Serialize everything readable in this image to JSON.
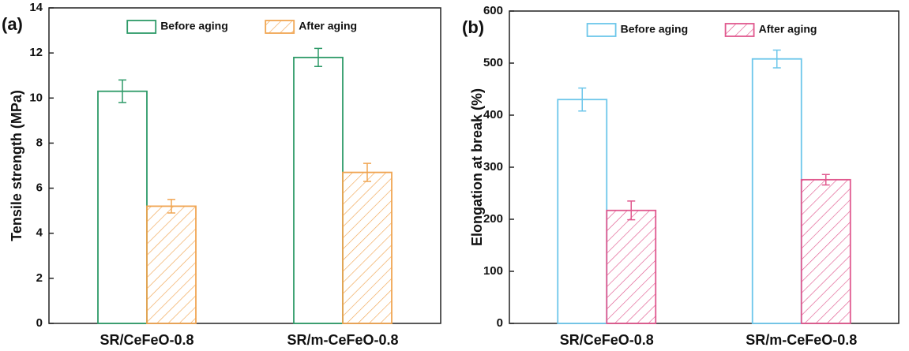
{
  "chart_data": [
    {
      "type": "bar",
      "panel_label": "(a)",
      "y_label": "Tensile strength (MPa)",
      "categories": [
        "SR/CeFeO-0.8",
        "SR/m-CeFeO-0.8"
      ],
      "series": [
        {
          "name": "Before aging",
          "color": "#2e9a68",
          "hatch": false,
          "values": [
            10.3,
            11.8
          ],
          "errors": [
            0.5,
            0.4
          ]
        },
        {
          "name": "After aging",
          "color": "#f0a552",
          "hatch": true,
          "values": [
            5.2,
            6.7
          ],
          "errors": [
            0.3,
            0.4
          ]
        }
      ],
      "ylim": [
        0,
        14
      ],
      "yticks": [
        0,
        2,
        4,
        6,
        8,
        10,
        12,
        14
      ],
      "legend": "top"
    },
    {
      "type": "bar",
      "panel_label": "(b)",
      "y_label": "Elongation at break (%)",
      "categories": [
        "SR/CeFeO-0.8",
        "SR/m-CeFeO-0.8"
      ],
      "series": [
        {
          "name": "Before aging",
          "color": "#6cc6ea",
          "hatch": false,
          "values": [
            430,
            508
          ],
          "errors": [
            22,
            17
          ]
        },
        {
          "name": "After aging",
          "color": "#e0588e",
          "hatch": true,
          "values": [
            217,
            276
          ],
          "errors": [
            18,
            10
          ]
        }
      ],
      "ylim": [
        0,
        600
      ],
      "yticks": [
        0,
        100,
        200,
        300,
        400,
        500,
        600
      ],
      "legend": "top"
    }
  ]
}
